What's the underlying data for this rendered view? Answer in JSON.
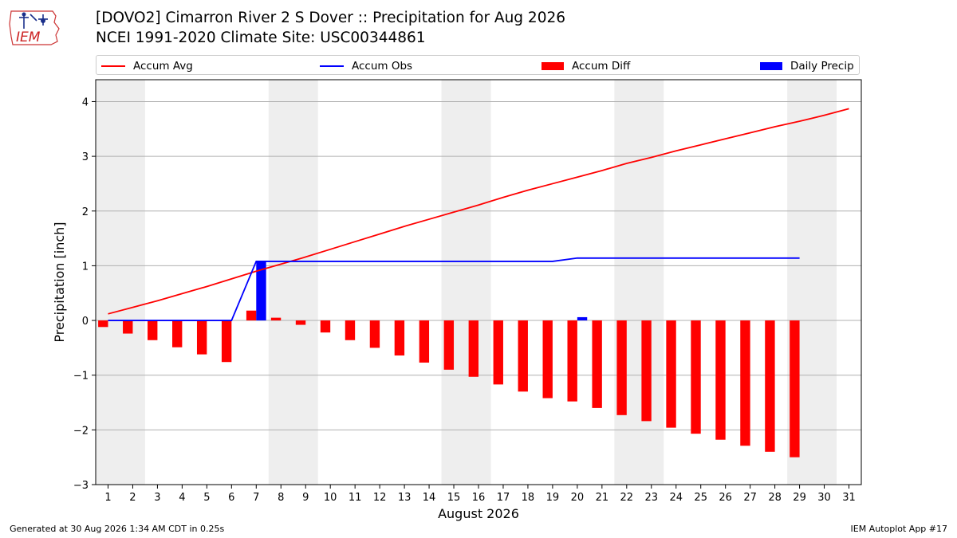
{
  "header": {
    "title_line1": "[DOVO2] Cimarron River 2 S Dover :: Precipitation for Aug 2026",
    "title_line2": "NCEI 1991-2020 Climate Site: USC00344861"
  },
  "logo": {
    "text": "IEM",
    "icon": "iem-iowa-logo-icon"
  },
  "footer": {
    "left": "Generated at 30 Aug 2026 1:34 AM CDT in 0.25s",
    "right": "IEM Autoplot App #17"
  },
  "colors": {
    "avg": "#ff0000",
    "obs": "#0000ff",
    "diff": "#ff0000",
    "daily": "#0000ff",
    "weekend": "#eeeeee",
    "grid": "#b0b0b0"
  },
  "chart_data": {
    "type": "bar",
    "xlabel": "August 2026",
    "ylabel": "Precipitation [inch]",
    "xlim": [
      0.5,
      31.5
    ],
    "ylim": [
      -3,
      4.4
    ],
    "yticks": [
      -3,
      -2,
      -1,
      0,
      1,
      2,
      3,
      4
    ],
    "ytick_labels": [
      "−3",
      "−2",
      "−1",
      "0",
      "1",
      "2",
      "3",
      "4"
    ],
    "xticks": [
      1,
      2,
      3,
      4,
      5,
      6,
      7,
      8,
      9,
      10,
      11,
      12,
      13,
      14,
      15,
      16,
      17,
      18,
      19,
      20,
      21,
      22,
      23,
      24,
      25,
      26,
      27,
      28,
      29,
      30,
      31
    ],
    "grid": "horizontal",
    "legend_position": "top",
    "shaded_day_ranges": [
      [
        1,
        2
      ],
      [
        8,
        9
      ],
      [
        15,
        16
      ],
      [
        22,
        23
      ],
      [
        29,
        30
      ]
    ],
    "series": [
      {
        "name": "Accum Avg",
        "kind": "line",
        "x": [
          1,
          2,
          3,
          4,
          5,
          6,
          7,
          8,
          9,
          10,
          11,
          12,
          13,
          14,
          15,
          16,
          17,
          18,
          19,
          20,
          21,
          22,
          23,
          24,
          25,
          26,
          27,
          28,
          29,
          30,
          31
        ],
        "values": [
          0.12,
          0.24,
          0.36,
          0.49,
          0.62,
          0.76,
          0.9,
          1.03,
          1.16,
          1.3,
          1.44,
          1.58,
          1.72,
          1.85,
          1.98,
          2.11,
          2.25,
          2.38,
          2.5,
          2.62,
          2.74,
          2.87,
          2.98,
          3.1,
          3.21,
          3.32,
          3.43,
          3.54,
          3.64,
          3.75,
          3.87
        ]
      },
      {
        "name": "Accum Obs",
        "kind": "line",
        "x": [
          1,
          2,
          3,
          4,
          5,
          6,
          7,
          8,
          9,
          10,
          11,
          12,
          13,
          14,
          15,
          16,
          17,
          18,
          19,
          20,
          21,
          22,
          23,
          24,
          25,
          26,
          27,
          28,
          29
        ],
        "values": [
          0,
          0,
          0,
          0,
          0,
          0,
          1.08,
          1.08,
          1.08,
          1.08,
          1.08,
          1.08,
          1.08,
          1.08,
          1.08,
          1.08,
          1.08,
          1.08,
          1.08,
          1.14,
          1.14,
          1.14,
          1.14,
          1.14,
          1.14,
          1.14,
          1.14,
          1.14,
          1.14
        ]
      },
      {
        "name": "Accum Diff",
        "kind": "bar",
        "x": [
          1,
          2,
          3,
          4,
          5,
          6,
          7,
          8,
          9,
          10,
          11,
          12,
          13,
          14,
          15,
          16,
          17,
          18,
          19,
          20,
          21,
          22,
          23,
          24,
          25,
          26,
          27,
          28,
          29
        ],
        "values": [
          -0.12,
          -0.24,
          -0.36,
          -0.49,
          -0.62,
          -0.76,
          0.18,
          0.05,
          -0.08,
          -0.22,
          -0.36,
          -0.5,
          -0.64,
          -0.77,
          -0.9,
          -1.03,
          -1.17,
          -1.3,
          -1.42,
          -1.48,
          -1.6,
          -1.73,
          -1.84,
          -1.96,
          -2.07,
          -2.18,
          -2.29,
          -2.4,
          -2.5
        ]
      },
      {
        "name": "Daily Precip",
        "kind": "bar",
        "x": [
          7,
          20
        ],
        "values": [
          1.08,
          0.06
        ]
      }
    ]
  }
}
